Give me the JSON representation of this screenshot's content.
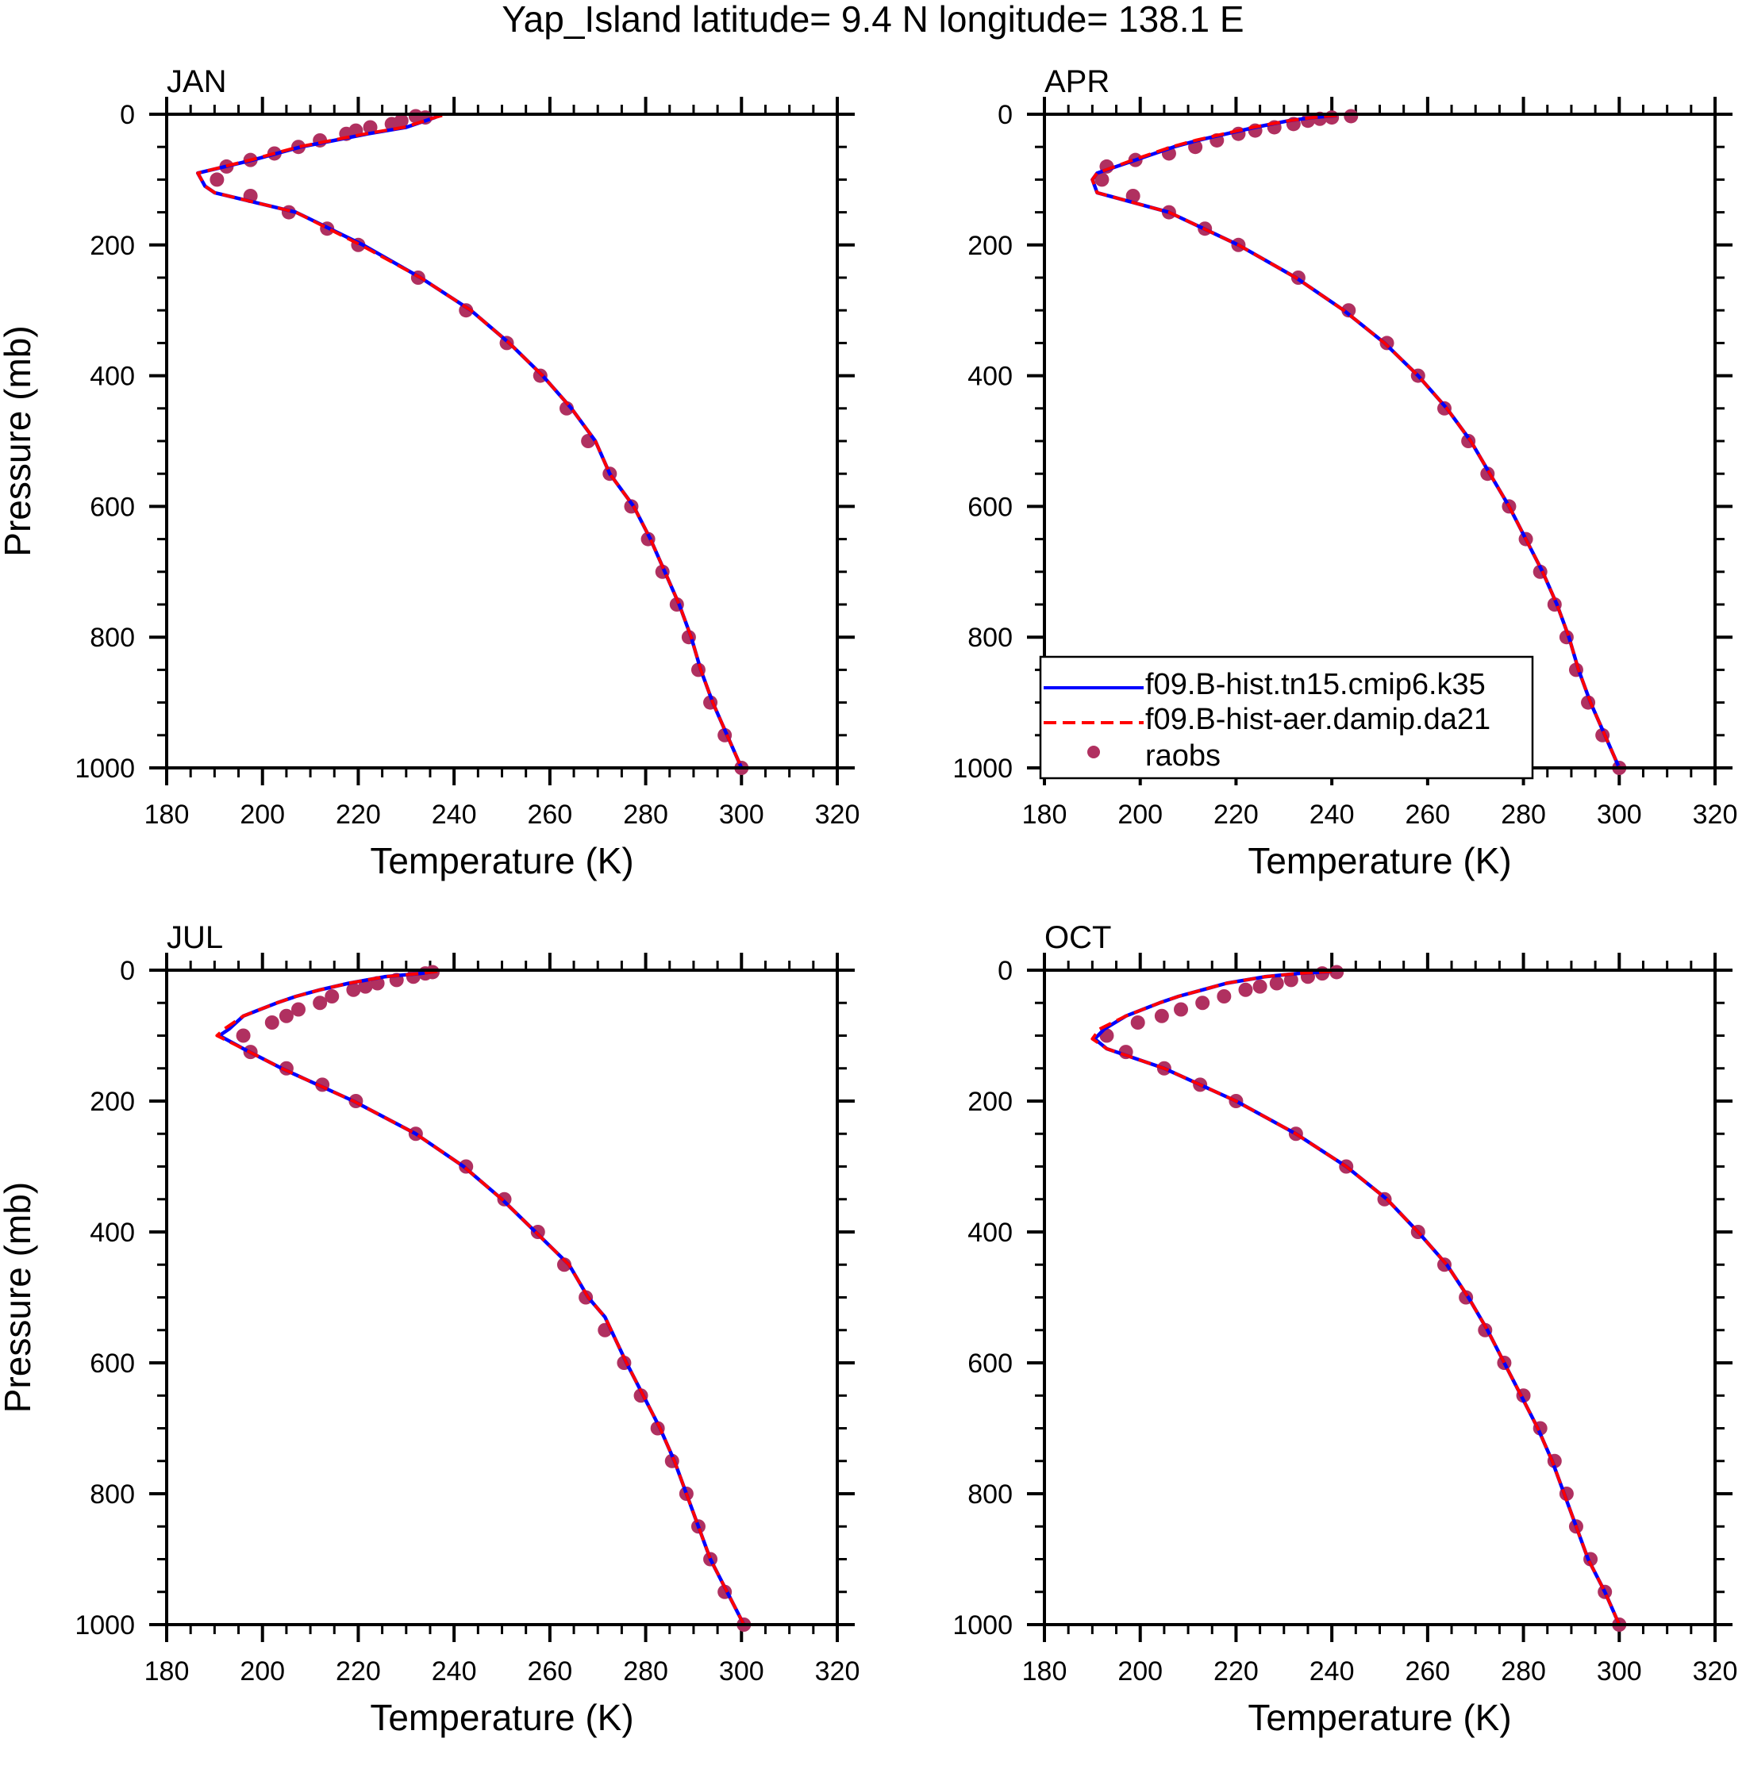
{
  "title": "Yap_Island  latitude= 9.4 N longitude= 138.1 E",
  "colors": {
    "model1": "#0000ff",
    "model2": "#ff0000",
    "obs": "#b03060"
  },
  "chart_data": [
    {
      "type": "line",
      "panel": "JAN",
      "xlabel": "Temperature (K)",
      "ylabel": "Pressure (mb)",
      "xlim": [
        180,
        320
      ],
      "ylim": [
        1000,
        0
      ],
      "y_reversed": true,
      "xticks": [
        180,
        200,
        220,
        240,
        260,
        280,
        300,
        320
      ],
      "yticks": [
        0,
        200,
        400,
        600,
        800,
        1000
      ],
      "series": [
        {
          "name": "f09.B-hist.tn15.cmip6.k35",
          "style": "solid",
          "color_key": "model1",
          "p": [
            2,
            5,
            10,
            20,
            30,
            40,
            50,
            70,
            90,
            110,
            120,
            150,
            200,
            250,
            300,
            350,
            400,
            450,
            500,
            550,
            600,
            650,
            700,
            750,
            800,
            850,
            900,
            950,
            1000
          ],
          "T": [
            237,
            236,
            234,
            230,
            222,
            215,
            208,
            198,
            186.5,
            188,
            190,
            207,
            221,
            233,
            243.5,
            251.5,
            258.5,
            264.5,
            269.5,
            272.5,
            277.5,
            281,
            284,
            287,
            289.5,
            291.5,
            294,
            297,
            300
          ]
        },
        {
          "name": "f09.B-hist-aer.damip.da21",
          "style": "dashed",
          "color_key": "model2",
          "p": [
            2,
            5,
            10,
            20,
            30,
            40,
            50,
            70,
            90,
            110,
            120,
            150,
            200,
            250,
            300,
            350,
            400,
            450,
            500,
            550,
            600,
            650,
            700,
            750,
            800,
            850,
            900,
            950,
            1000
          ],
          "T": [
            237.5,
            236,
            234,
            229.5,
            221.5,
            214.5,
            207.5,
            197.5,
            186.5,
            188,
            190,
            207,
            220.5,
            233,
            243.5,
            251.5,
            258.5,
            264.5,
            269.5,
            272.5,
            277.5,
            281,
            284,
            287,
            289.5,
            291.5,
            294,
            297,
            300
          ]
        },
        {
          "name": "raobs",
          "style": "markers",
          "color_key": "obs",
          "p": [
            3,
            5,
            10,
            15,
            20,
            25,
            30,
            40,
            50,
            60,
            70,
            80,
            100,
            125,
            150,
            175,
            200,
            250,
            300,
            350,
            400,
            450,
            500,
            550,
            600,
            650,
            700,
            750,
            800,
            850,
            900,
            950,
            1000
          ],
          "T": [
            232,
            234,
            229,
            227,
            222.5,
            219.5,
            217.5,
            212,
            207.5,
            202.5,
            197.5,
            192.5,
            190.5,
            197.5,
            205.5,
            213.5,
            220,
            232.5,
            242.5,
            251,
            258,
            263.5,
            268,
            272.5,
            277,
            280.5,
            283.5,
            286.5,
            289,
            291,
            293.5,
            296.5,
            300
          ]
        }
      ]
    },
    {
      "type": "line",
      "panel": "APR",
      "xlabel": "Temperature (K)",
      "ylabel": "",
      "xlim": [
        180,
        320
      ],
      "ylim": [
        1000,
        0
      ],
      "y_reversed": true,
      "xticks": [
        180,
        200,
        220,
        240,
        260,
        280,
        300,
        320
      ],
      "yticks": [
        0,
        200,
        400,
        600,
        800,
        1000
      ],
      "legend": {
        "position": "bottom-right",
        "entries": [
          "f09.B-hist.tn15.cmip6.k35",
          "f09.B-hist-aer.damip.da21",
          "raobs"
        ]
      },
      "series": [
        {
          "name": "f09.B-hist.tn15.cmip6.k35",
          "style": "solid",
          "color_key": "model1",
          "p": [
            2,
            5,
            10,
            20,
            30,
            40,
            50,
            70,
            90,
            100,
            120,
            150,
            200,
            250,
            300,
            350,
            400,
            450,
            500,
            550,
            600,
            650,
            700,
            750,
            800,
            850,
            900,
            950,
            1000
          ],
          "T": [
            241,
            236,
            231,
            224,
            218,
            212,
            207,
            199,
            191,
            190,
            191,
            206,
            220.5,
            232.5,
            242.5,
            251,
            258,
            264,
            269,
            273,
            277,
            280.5,
            284,
            287,
            289.5,
            291.5,
            294,
            297,
            300
          ]
        },
        {
          "name": "f09.B-hist-aer.damip.da21",
          "style": "dashed",
          "color_key": "model2",
          "p": [
            2,
            5,
            10,
            20,
            30,
            40,
            50,
            70,
            90,
            100,
            120,
            150,
            200,
            250,
            300,
            350,
            400,
            450,
            500,
            550,
            600,
            650,
            700,
            750,
            800,
            850,
            900,
            950,
            1000
          ],
          "T": [
            241,
            236,
            231,
            223.5,
            217.5,
            211.5,
            206.5,
            198.5,
            191,
            190,
            191,
            206,
            220.5,
            232.5,
            242.5,
            251,
            258,
            264,
            269,
            273,
            277,
            280.5,
            284,
            287,
            289.5,
            291.5,
            294,
            297,
            300
          ]
        },
        {
          "name": "raobs",
          "style": "markers",
          "color_key": "obs",
          "p": [
            3,
            5,
            7,
            10,
            15,
            20,
            25,
            30,
            40,
            50,
            60,
            70,
            80,
            100,
            125,
            150,
            175,
            200,
            250,
            300,
            350,
            400,
            450,
            500,
            550,
            600,
            650,
            700,
            750,
            800,
            850,
            900,
            950,
            1000
          ],
          "T": [
            244,
            240,
            237.5,
            235,
            232,
            228,
            224,
            220.5,
            216,
            211.5,
            206,
            199,
            193,
            192,
            198.5,
            206,
            213.5,
            220.5,
            233,
            243.5,
            251.5,
            258,
            263.5,
            268.5,
            272.5,
            277,
            280.5,
            283.5,
            286.5,
            289,
            291,
            293.5,
            296.5,
            300
          ]
        }
      ]
    },
    {
      "type": "line",
      "panel": "JUL",
      "xlabel": "Temperature (K)",
      "ylabel": "Pressure (mb)",
      "xlim": [
        180,
        320
      ],
      "ylim": [
        1000,
        0
      ],
      "y_reversed": true,
      "xticks": [
        180,
        200,
        220,
        240,
        260,
        280,
        300,
        320
      ],
      "yticks": [
        0,
        200,
        400,
        600,
        800,
        1000
      ],
      "series": [
        {
          "name": "f09.B-hist.tn15.cmip6.k35",
          "style": "solid",
          "color_key": "model1",
          "p": [
            2,
            5,
            10,
            20,
            30,
            40,
            50,
            70,
            90,
            100,
            120,
            150,
            200,
            250,
            300,
            350,
            400,
            450,
            500,
            530,
            600,
            650,
            700,
            750,
            800,
            850,
            900,
            950,
            1000
          ],
          "T": [
            236,
            233,
            225.5,
            218,
            212,
            207,
            203,
            196,
            193,
            191,
            196,
            204,
            219,
            232,
            242,
            250,
            257,
            264,
            268,
            271.5,
            276,
            279.5,
            283,
            286,
            288.5,
            291,
            293.5,
            297,
            300.5
          ]
        },
        {
          "name": "f09.B-hist-aer.damip.da21",
          "style": "dashed",
          "color_key": "model2",
          "p": [
            2,
            5,
            10,
            20,
            30,
            40,
            50,
            70,
            90,
            100,
            120,
            150,
            200,
            250,
            300,
            350,
            400,
            450,
            500,
            530,
            600,
            650,
            700,
            750,
            800,
            850,
            900,
            950,
            1000
          ],
          "T": [
            236.5,
            233,
            225.5,
            218,
            212,
            207,
            203,
            196,
            192,
            190.5,
            196,
            204,
            219,
            232,
            242,
            250,
            257,
            264,
            268,
            271.5,
            276,
            279.5,
            283,
            286,
            288.5,
            291,
            293.5,
            297,
            300.5
          ]
        },
        {
          "name": "raobs",
          "style": "markers",
          "color_key": "obs",
          "p": [
            3,
            5,
            10,
            15,
            20,
            25,
            30,
            40,
            50,
            60,
            70,
            80,
            100,
            125,
            150,
            175,
            200,
            250,
            300,
            350,
            400,
            450,
            500,
            550,
            600,
            650,
            700,
            750,
            800,
            850,
            900,
            950,
            1000
          ],
          "T": [
            235.5,
            234,
            231.5,
            228,
            224,
            221.5,
            219,
            214.5,
            212,
            207.5,
            205,
            202,
            196,
            197.5,
            205,
            212.5,
            219.5,
            232,
            242.5,
            250.5,
            257.5,
            263,
            267.5,
            271.5,
            275.5,
            279,
            282.5,
            285.5,
            288.5,
            291,
            293.5,
            296.5,
            300.5
          ]
        }
      ]
    },
    {
      "type": "line",
      "panel": "OCT",
      "xlabel": "Temperature (K)",
      "ylabel": "",
      "xlim": [
        180,
        320
      ],
      "ylim": [
        1000,
        0
      ],
      "y_reversed": true,
      "xticks": [
        180,
        200,
        220,
        240,
        260,
        280,
        300,
        320
      ],
      "yticks": [
        0,
        200,
        400,
        600,
        800,
        1000
      ],
      "series": [
        {
          "name": "f09.B-hist.tn15.cmip6.k35",
          "style": "solid",
          "color_key": "model1",
          "p": [
            2,
            5,
            10,
            20,
            30,
            40,
            50,
            70,
            90,
            105,
            120,
            150,
            200,
            250,
            300,
            350,
            400,
            450,
            500,
            550,
            600,
            650,
            700,
            750,
            800,
            850,
            900,
            950,
            1000
          ],
          "T": [
            240,
            233,
            226,
            218,
            213,
            208,
            204,
            197,
            192.5,
            190.5,
            193,
            205,
            220,
            232.5,
            243,
            251.5,
            258,
            264,
            268.5,
            272.5,
            276,
            279.5,
            283,
            286,
            288.5,
            291,
            293.5,
            297,
            300
          ]
        },
        {
          "name": "f09.B-hist-aer.damip.da21",
          "style": "dashed",
          "color_key": "model2",
          "p": [
            2,
            5,
            10,
            20,
            30,
            40,
            50,
            70,
            90,
            105,
            120,
            150,
            200,
            250,
            300,
            350,
            400,
            450,
            500,
            550,
            600,
            650,
            700,
            750,
            800,
            850,
            900,
            950,
            1000
          ],
          "T": [
            240,
            233,
            226,
            218,
            213,
            208,
            204,
            197,
            191.5,
            190,
            193,
            205,
            220,
            232.5,
            243,
            251.5,
            258,
            264,
            268.5,
            272.5,
            276,
            279.5,
            283,
            286,
            288.5,
            291,
            293.5,
            297,
            300
          ]
        },
        {
          "name": "raobs",
          "style": "markers",
          "color_key": "obs",
          "p": [
            3,
            5,
            10,
            15,
            20,
            25,
            30,
            40,
            50,
            60,
            70,
            80,
            100,
            125,
            150,
            175,
            200,
            250,
            300,
            350,
            400,
            450,
            500,
            550,
            600,
            650,
            700,
            750,
            800,
            850,
            900,
            950,
            1000
          ],
          "T": [
            241,
            238,
            235,
            231.5,
            228.5,
            225,
            222,
            217.5,
            213,
            208.5,
            204.5,
            199.5,
            193,
            197,
            205,
            212.5,
            220,
            232.5,
            243,
            251,
            258,
            263.5,
            268,
            272,
            276,
            280,
            283.5,
            286.5,
            289,
            291,
            294,
            297,
            300
          ]
        }
      ]
    }
  ]
}
